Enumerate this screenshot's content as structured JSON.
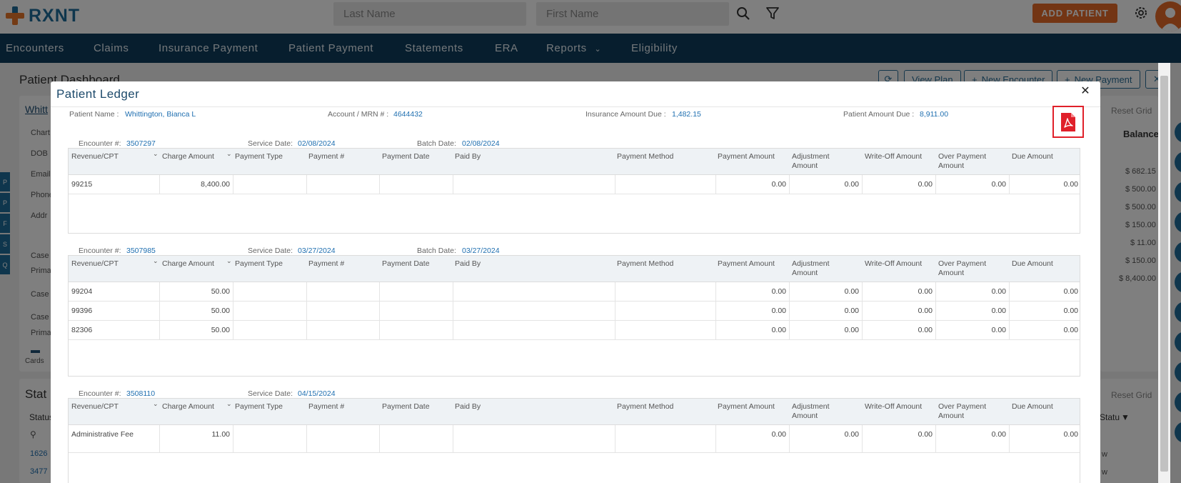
{
  "header": {
    "logo_text": "RXNT",
    "last_name_placeholder": "Last Name",
    "first_name_placeholder": "First Name",
    "add_patient_label": "ADD PATIENT"
  },
  "nav": {
    "items": [
      "Encounters",
      "Claims",
      "Insurance Payment",
      "Patient Payment",
      "Statements",
      "ERA",
      "Reports",
      "Eligibility"
    ]
  },
  "background": {
    "page_title": "Patient Dashboard",
    "buttons": {
      "view_plan": "View Plan",
      "new_encounter": "New Encounter",
      "new_payment": "New Payment"
    },
    "patient_short": "Whitt",
    "labels": [
      "Chart",
      "DOB",
      "Email",
      "Phone",
      "Addr",
      "Case",
      "Prima",
      "Case",
      "Case",
      "Prima"
    ],
    "cards_label": "Cards",
    "stat_title": "Stat",
    "stat_col": "Status",
    "stat_col_short": "Statu",
    "reset_grid": "Reset Grid",
    "balance_header": "Balance",
    "balances": [
      "$ 682.15",
      "$ 500.00",
      "$ 500.00",
      "$ 150.00",
      "$ 11.00",
      "$ 150.00",
      "$ 8,400.00"
    ],
    "side_tabs": [
      "P",
      "P",
      "F",
      "S",
      "Q"
    ],
    "stat_rows": [
      "1626",
      "3477"
    ],
    "stat_row_tail": [
      "w",
      "w"
    ]
  },
  "modal": {
    "title": "Patient Ledger",
    "summary": {
      "patient_name_label": "Patient Name :",
      "patient_name": "Whittington, Bianca L",
      "account_label": "Account / MRN # :",
      "account": "4644432",
      "insurance_due_label": "Insurance Amount Due :",
      "insurance_due": "1,482.15",
      "patient_due_label": "Patient Amount Due :",
      "patient_due": "8,911.00"
    },
    "labels": {
      "encounter": "Encounter #:",
      "service_date": "Service Date:",
      "batch_date": "Batch Date:"
    },
    "columns": [
      "Revenue/CPT",
      "Charge Amount",
      "Payment Type",
      "Payment #",
      "Payment Date",
      "Paid By",
      "Payment Method",
      "Payment Amount",
      "Adjustment Amount",
      "Write-Off Amount",
      "Over Payment Amount",
      "Due Amount"
    ],
    "encounters": [
      {
        "encounter": "3507297",
        "service_date": "02/08/2024",
        "batch_date": "02/08/2024",
        "rows": [
          [
            "99215",
            "8,400.00",
            "",
            "",
            "",
            "",
            "",
            "0.00",
            "0.00",
            "0.00",
            "0.00",
            "0.00"
          ]
        ]
      },
      {
        "encounter": "3507985",
        "service_date": "03/27/2024",
        "batch_date": "03/27/2024",
        "rows": [
          [
            "99204",
            "50.00",
            "",
            "",
            "",
            "",
            "",
            "0.00",
            "0.00",
            "0.00",
            "0.00",
            "0.00"
          ],
          [
            "99396",
            "50.00",
            "",
            "",
            "",
            "",
            "",
            "0.00",
            "0.00",
            "0.00",
            "0.00",
            "0.00"
          ],
          [
            "82306",
            "50.00",
            "",
            "",
            "",
            "",
            "",
            "0.00",
            "0.00",
            "0.00",
            "0.00",
            "0.00"
          ]
        ]
      },
      {
        "encounter": "3508110",
        "service_date": "04/15/2024",
        "batch_date": "",
        "rows": [
          [
            "Administrative Fee",
            "11.00",
            "",
            "",
            "",
            "",
            "",
            "0.00",
            "0.00",
            "0.00",
            "0.00",
            "0.00"
          ]
        ]
      }
    ]
  },
  "colors": {
    "nav_bg": "#0f3d5c",
    "brand_blue": "#1f6d9a",
    "brand_orange": "#e66a28",
    "link_blue": "#1f6fb0",
    "pdf_red": "#e0202a"
  }
}
